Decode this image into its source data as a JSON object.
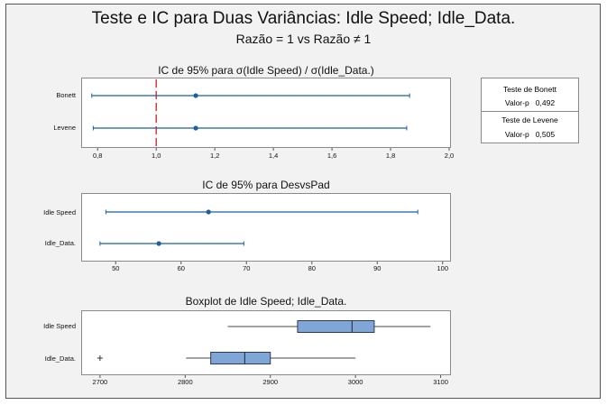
{
  "title": "Teste e IC para Duas Variâncias: Idle Speed; Idle_Data.",
  "subtitle": "Razão = 1 vs Razão ≠ 1",
  "colors": {
    "series": "#1f5f9e",
    "reference": "#cc2222",
    "box_fill": "#7fa6d6",
    "box_stroke": "#2a3d55",
    "background": "#f2f2f2"
  },
  "tests": {
    "bonett": {
      "label": "Teste de Bonett",
      "p_label": "Valor-p",
      "p_value": "0,492"
    },
    "levene": {
      "label": "Teste de Levene",
      "p_label": "Valor-p",
      "p_value": "0,505"
    }
  },
  "chart_data": [
    {
      "type": "interval",
      "title": "IC de 95% para σ(Idle Speed) / σ(Idle_Data.)",
      "categories": [
        "Bonett",
        "Levene"
      ],
      "intervals": [
        {
          "name": "Bonett",
          "lower": 0.78,
          "estimate": 1.135,
          "upper": 1.865
        },
        {
          "name": "Levene",
          "lower": 0.785,
          "estimate": 1.135,
          "upper": 1.855
        }
      ],
      "reference_line": 1.0,
      "xlim": [
        0.75,
        2.0
      ],
      "ticks": [
        0.8,
        1.0,
        1.2,
        1.4,
        1.6,
        1.8,
        2.0
      ],
      "tick_labels": [
        "0,8",
        "1,0",
        "1,2",
        "1,4",
        "1,6",
        "1,8",
        "2,0"
      ]
    },
    {
      "type": "interval",
      "title": "IC de 95% para DesvsPad",
      "categories": [
        "Idle Speed",
        "Idle_Data."
      ],
      "intervals": [
        {
          "name": "Idle Speed",
          "lower": 48.5,
          "estimate": 64.2,
          "upper": 96.2
        },
        {
          "name": "Idle_Data.",
          "lower": 47.6,
          "estimate": 56.6,
          "upper": 69.6
        }
      ],
      "xlim": [
        45,
        101
      ],
      "ticks": [
        50,
        60,
        70,
        80,
        90,
        100
      ],
      "tick_labels": [
        "50",
        "60",
        "70",
        "80",
        "90",
        "100"
      ]
    },
    {
      "type": "boxplot",
      "title": "Boxplot de Idle Speed; Idle_Data.",
      "categories": [
        "Idle Speed",
        "Idle_Data."
      ],
      "boxes": [
        {
          "name": "Idle Speed",
          "whisker_low": 2850,
          "q1": 2932,
          "median": 2996,
          "q3": 3022,
          "whisker_high": 3088,
          "outliers": []
        },
        {
          "name": "Idle_Data.",
          "whisker_low": 2801,
          "q1": 2830,
          "median": 2870,
          "q3": 2900,
          "whisker_high": 3000,
          "outliers": [
            2700
          ]
        }
      ],
      "xlim": [
        2680,
        3110
      ],
      "ticks": [
        2700,
        2800,
        2900,
        3000,
        3100
      ],
      "tick_labels": [
        "2700",
        "2800",
        "2900",
        "3000",
        "3100"
      ]
    }
  ]
}
